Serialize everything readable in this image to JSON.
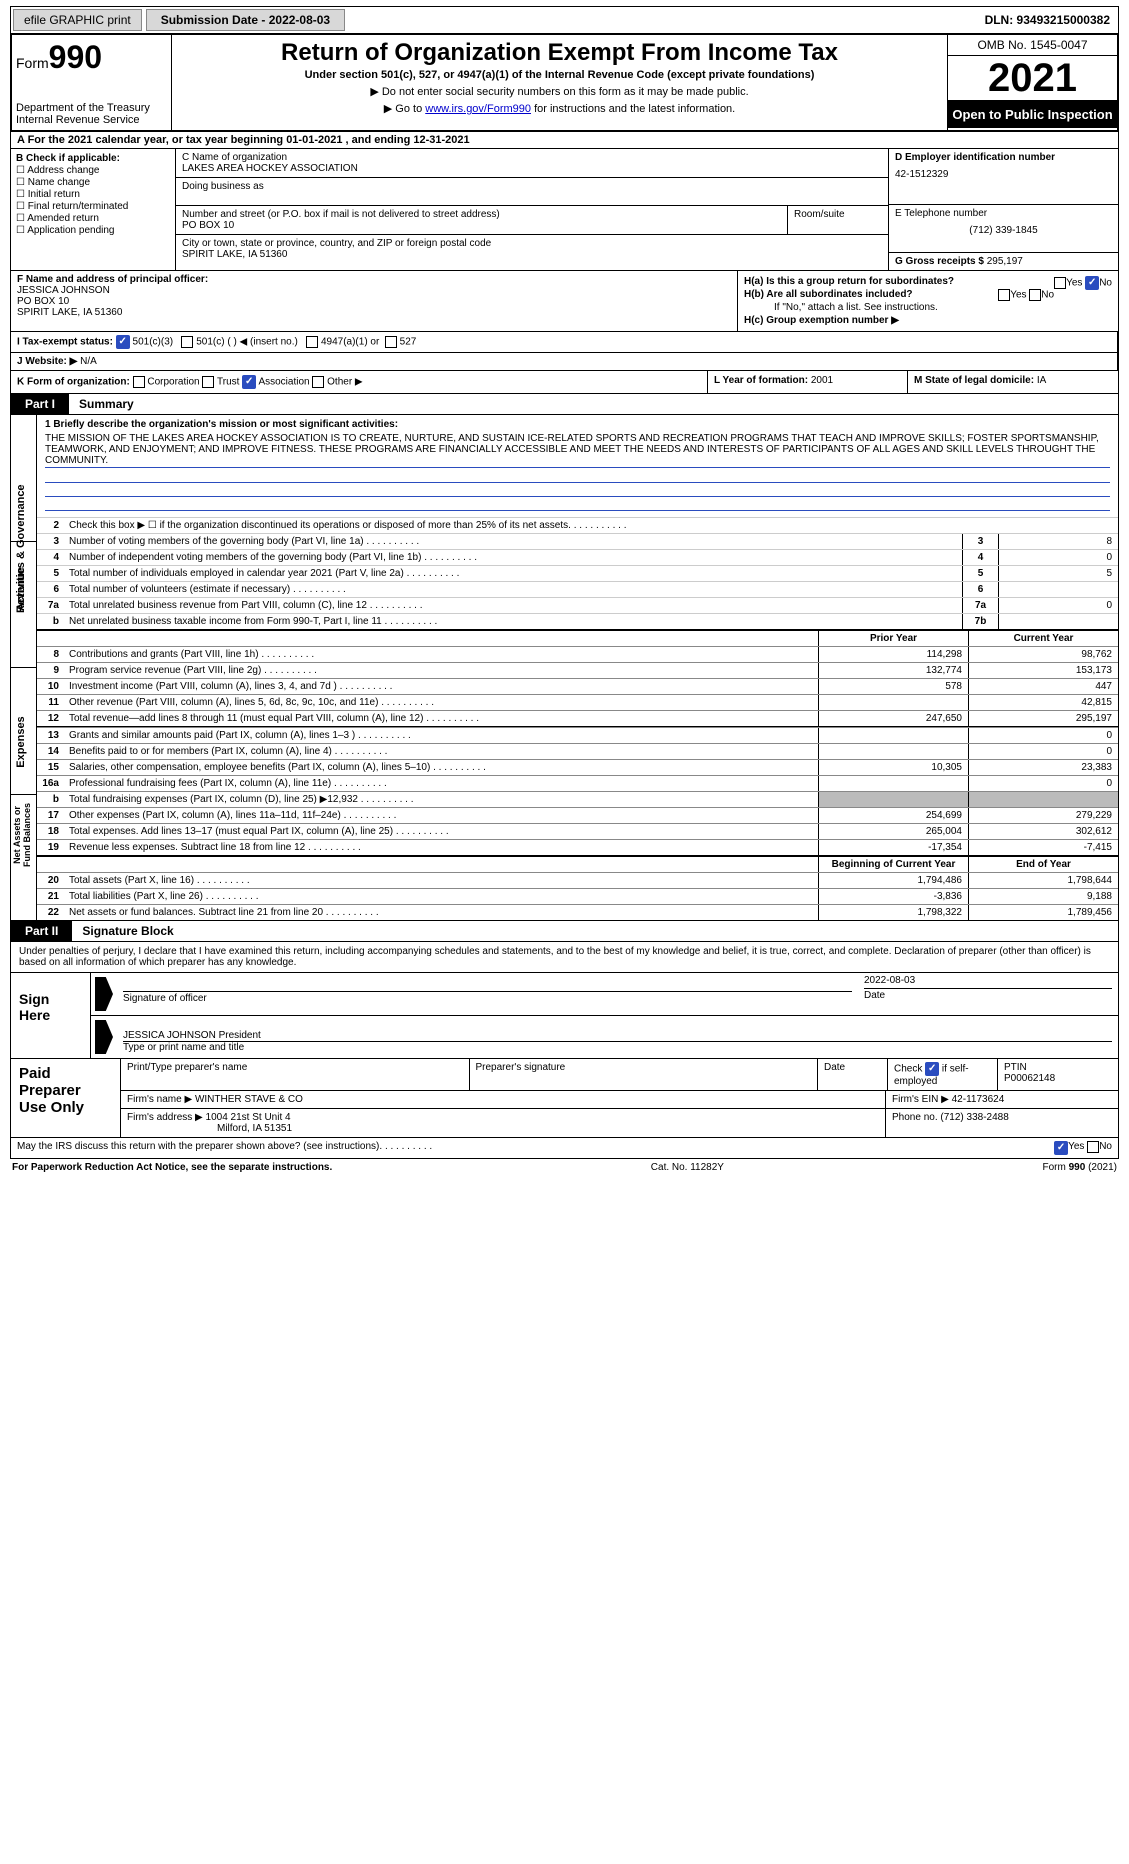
{
  "topbar": {
    "efile": "efile GRAPHIC print",
    "submission": "Submission Date - 2022-08-03",
    "dln": "DLN: 93493215000382"
  },
  "header": {
    "form_label": "Form",
    "form_number": "990",
    "title": "Return of Organization Exempt From Income Tax",
    "subtitle": "Under section 501(c), 527, or 4947(a)(1) of the Internal Revenue Code (except private foundations)",
    "note1": "▶ Do not enter social security numbers on this form as it may be made public.",
    "note2_pre": "▶ Go to ",
    "note2_link": "www.irs.gov/Form990",
    "note2_post": " for instructions and the latest information.",
    "dept": "Department of the Treasury\nInternal Revenue Service",
    "omb": "OMB No. 1545-0047",
    "year": "2021",
    "open": "Open to Public Inspection"
  },
  "row_a": "A  For the 2021 calendar year, or tax year beginning 01-01-2021   , and ending 12-31-2021",
  "col_b": {
    "label": "B Check if applicable:",
    "items": [
      "☐ Address change",
      "☐ Name change",
      "☐ Initial return",
      "☐ Final return/terminated",
      "☐ Amended return",
      "☐ Application pending"
    ]
  },
  "col_c": {
    "name_lbl": "C Name of organization",
    "name": "LAKES AREA HOCKEY ASSOCIATION",
    "dba_lbl": "Doing business as",
    "addr_lbl": "Number and street (or P.O. box if mail is not delivered to street address)",
    "addr": "PO BOX 10",
    "room_lbl": "Room/suite",
    "city_lbl": "City or town, state or province, country, and ZIP or foreign postal code",
    "city": "SPIRIT LAKE, IA  51360"
  },
  "col_d": {
    "ein_lbl": "D Employer identification number",
    "ein": "42-1512329",
    "phone_lbl": "E Telephone number",
    "phone": "(712) 339-1845",
    "gross_lbl": "G Gross receipts $",
    "gross": "295,197"
  },
  "col_f": {
    "lbl": "F  Name and address of principal officer:",
    "name": "JESSICA JOHNSON",
    "addr1": "PO BOX 10",
    "addr2": "SPIRIT LAKE, IA  51360"
  },
  "col_h": {
    "ha": "H(a)  Is this a group return for subordinates?",
    "hb": "H(b)  Are all subordinates included?",
    "hb_no": "If \"No,\" attach a list. See instructions.",
    "hc": "H(c)  Group exemption number ▶",
    "yes": "Yes",
    "no": "No"
  },
  "row_i": {
    "lbl": "I    Tax-exempt status:",
    "opt1": "501(c)(3)",
    "opt2": "501(c) (   ) ◀ (insert no.)",
    "opt3": "4947(a)(1) or",
    "opt4": "527"
  },
  "row_j": {
    "lbl": "J   Website: ▶",
    "val": "N/A"
  },
  "row_k": {
    "lbl": "K Form of organization:",
    "opts": [
      "Corporation",
      "Trust",
      "Association",
      "Other ▶"
    ]
  },
  "row_l": {
    "lbl": "L Year of formation:",
    "val": "2001"
  },
  "row_m": {
    "lbl": "M State of legal domicile:",
    "val": "IA"
  },
  "parts": {
    "p1": "Part I",
    "p1_title": "Summary",
    "p2": "Part II",
    "p2_title": "Signature Block"
  },
  "sides": {
    "s1": "Activities & Governance",
    "s2": "Revenue",
    "s3": "Expenses",
    "s4": "Net Assets or\nFund Balances"
  },
  "mission": {
    "lbl": "1   Briefly describe the organization's mission or most significant activities:",
    "text": "THE MISSION OF THE LAKES AREA HOCKEY ASSOCIATION IS TO CREATE, NURTURE, AND SUSTAIN ICE-RELATED SPORTS AND RECREATION PROGRAMS THAT TEACH AND IMPROVE SKILLS; FOSTER SPORTSMANSHIP, TEAMWORK, AND ENJOYMENT; AND IMPROVE FITNESS. THESE PROGRAMS ARE FINANCIALLY ACCESSIBLE AND MEET THE NEEDS AND INTERESTS OF PARTICIPANTS OF ALL AGES AND SKILL LEVELS THROUGHT THE COMMUNITY."
  },
  "gov_rows": [
    {
      "n": "2",
      "d": "Check this box ▶ ☐  if the organization discontinued its operations or disposed of more than 25% of its net assets.",
      "box": "",
      "v": ""
    },
    {
      "n": "3",
      "d": "Number of voting members of the governing body (Part VI, line 1a)",
      "box": "3",
      "v": "8"
    },
    {
      "n": "4",
      "d": "Number of independent voting members of the governing body (Part VI, line 1b)",
      "box": "4",
      "v": "0"
    },
    {
      "n": "5",
      "d": "Total number of individuals employed in calendar year 2021 (Part V, line 2a)",
      "box": "5",
      "v": "5"
    },
    {
      "n": "6",
      "d": "Total number of volunteers (estimate if necessary)",
      "box": "6",
      "v": ""
    },
    {
      "n": "7a",
      "d": "Total unrelated business revenue from Part VIII, column (C), line 12",
      "box": "7a",
      "v": "0"
    },
    {
      "n": "b",
      "d": "Net unrelated business taxable income from Form 990-T, Part I, line 11",
      "box": "7b",
      "v": ""
    }
  ],
  "fin_cols": {
    "prior": "Prior Year",
    "current": "Current Year",
    "beg": "Beginning of Current Year",
    "end": "End of Year"
  },
  "rev_rows": [
    {
      "n": "8",
      "d": "Contributions and grants (Part VIII, line 1h)",
      "p": "114,298",
      "c": "98,762"
    },
    {
      "n": "9",
      "d": "Program service revenue (Part VIII, line 2g)",
      "p": "132,774",
      "c": "153,173"
    },
    {
      "n": "10",
      "d": "Investment income (Part VIII, column (A), lines 3, 4, and 7d )",
      "p": "578",
      "c": "447"
    },
    {
      "n": "11",
      "d": "Other revenue (Part VIII, column (A), lines 5, 6d, 8c, 9c, 10c, and 11e)",
      "p": "",
      "c": "42,815"
    },
    {
      "n": "12",
      "d": "Total revenue—add lines 8 through 11 (must equal Part VIII, column (A), line 12)",
      "p": "247,650",
      "c": "295,197"
    }
  ],
  "exp_rows": [
    {
      "n": "13",
      "d": "Grants and similar amounts paid (Part IX, column (A), lines 1–3 )",
      "p": "",
      "c": "0"
    },
    {
      "n": "14",
      "d": "Benefits paid to or for members (Part IX, column (A), line 4)",
      "p": "",
      "c": "0"
    },
    {
      "n": "15",
      "d": "Salaries, other compensation, employee benefits (Part IX, column (A), lines 5–10)",
      "p": "10,305",
      "c": "23,383"
    },
    {
      "n": "16a",
      "d": "Professional fundraising fees (Part IX, column (A), line 11e)",
      "p": "",
      "c": "0"
    },
    {
      "n": "b",
      "d": "Total fundraising expenses (Part IX, column (D), line 25) ▶12,932",
      "p": "gray",
      "c": "gray"
    },
    {
      "n": "17",
      "d": "Other expenses (Part IX, column (A), lines 11a–11d, 11f–24e)",
      "p": "254,699",
      "c": "279,229"
    },
    {
      "n": "18",
      "d": "Total expenses. Add lines 13–17 (must equal Part IX, column (A), line 25)",
      "p": "265,004",
      "c": "302,612"
    },
    {
      "n": "19",
      "d": "Revenue less expenses. Subtract line 18 from line 12",
      "p": "-17,354",
      "c": "-7,415"
    }
  ],
  "net_rows": [
    {
      "n": "20",
      "d": "Total assets (Part X, line 16)",
      "p": "1,794,486",
      "c": "1,798,644"
    },
    {
      "n": "21",
      "d": "Total liabilities (Part X, line 26)",
      "p": "-3,836",
      "c": "9,188"
    },
    {
      "n": "22",
      "d": "Net assets or fund balances. Subtract line 21 from line 20",
      "p": "1,798,322",
      "c": "1,789,456"
    }
  ],
  "sig": {
    "intro": "Under penalties of perjury, I declare that I have examined this return, including accompanying schedules and statements, and to the best of my knowledge and belief, it is true, correct, and complete. Declaration of preparer (other than officer) is based on all information of which preparer has any knowledge.",
    "sign_here": "Sign Here",
    "sig_officer": "Signature of officer",
    "date_lbl": "Date",
    "date": "2022-08-03",
    "name": "JESSICA JOHNSON President",
    "name_lbl": "Type or print name and title"
  },
  "prep": {
    "title": "Paid Preparer Use Only",
    "h1": "Print/Type preparer's name",
    "h2": "Preparer's signature",
    "h3": "Date",
    "h4_pre": "Check",
    "h4_post": "if self-employed",
    "h5": "PTIN",
    "ptin": "P00062148",
    "firm_lbl": "Firm's name    ▶",
    "firm": "WINTHER STAVE & CO",
    "ein_lbl": "Firm's EIN ▶",
    "ein": "42-1173624",
    "addr_lbl": "Firm's address ▶",
    "addr1": "1004 21st St Unit 4",
    "addr2": "Milford, IA  51351",
    "phone_lbl": "Phone no.",
    "phone": "(712) 338-2488"
  },
  "bottom": {
    "q": "May the IRS discuss this return with the preparer shown above? (see instructions)",
    "yes": "Yes",
    "no": "No"
  },
  "footer": {
    "l": "For Paperwork Reduction Act Notice, see the separate instructions.",
    "c": "Cat. No. 11282Y",
    "r": "Form 990 (2021)"
  }
}
